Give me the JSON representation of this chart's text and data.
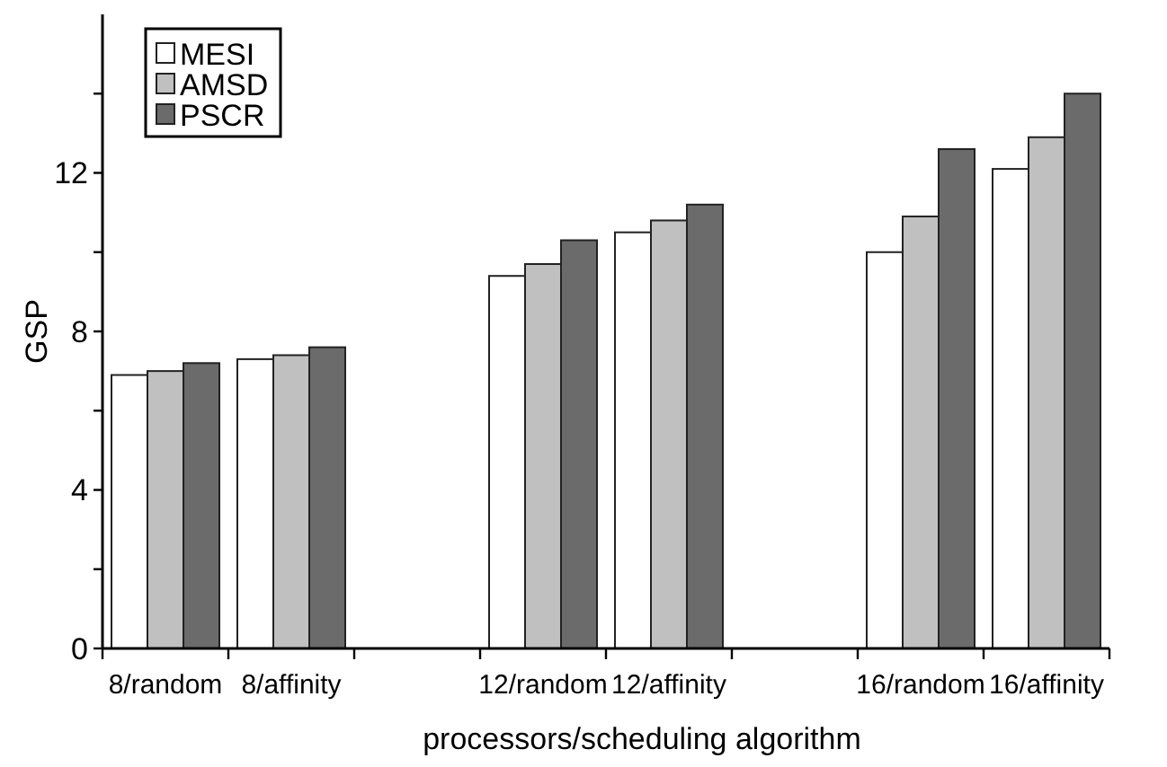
{
  "chart_data": {
    "type": "bar",
    "xlabel": "processors/scheduling algorithm",
    "ylabel": "GSP",
    "categories": [
      "8/random",
      "8/affinity",
      null,
      "12/random",
      "12/affinity",
      null,
      "16/random",
      "16/affinity"
    ],
    "series": [
      {
        "name": "MESI",
        "color": "#ffffff",
        "values": [
          6.9,
          7.3,
          null,
          9.4,
          10.5,
          null,
          10.0,
          12.1
        ]
      },
      {
        "name": "AMSD",
        "color": "#c0c0c0",
        "values": [
          7.0,
          7.4,
          null,
          9.7,
          10.8,
          null,
          10.9,
          12.9
        ]
      },
      {
        "name": "PSCR",
        "color": "#6b6b6b",
        "values": [
          7.2,
          7.6,
          null,
          10.3,
          11.2,
          null,
          12.6,
          14.0
        ]
      }
    ],
    "ylim": [
      0,
      16
    ],
    "yticks": [
      0,
      {
        "value": 2,
        "label": null
      },
      4,
      {
        "value": 6,
        "label": null
      },
      8,
      {
        "value": 10,
        "label": null
      },
      12,
      {
        "value": 14,
        "label": null
      }
    ],
    "grid": false,
    "legend": "top left"
  }
}
